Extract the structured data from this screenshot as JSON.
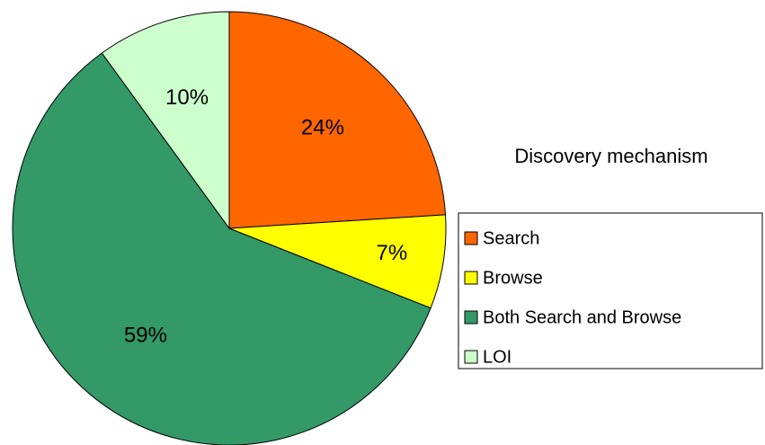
{
  "chart_data": {
    "type": "pie",
    "title": "Discovery mechanism",
    "categories": [
      "Search",
      "Browse",
      "Both Search and Browse",
      "LOI"
    ],
    "values": [
      24,
      7,
      59,
      10
    ],
    "value_labels": [
      "24%",
      "7%",
      "59%",
      "10%"
    ],
    "colors": [
      "#ff6600",
      "#ffff00",
      "#339966",
      "#ccffcc"
    ],
    "legend": "right"
  }
}
